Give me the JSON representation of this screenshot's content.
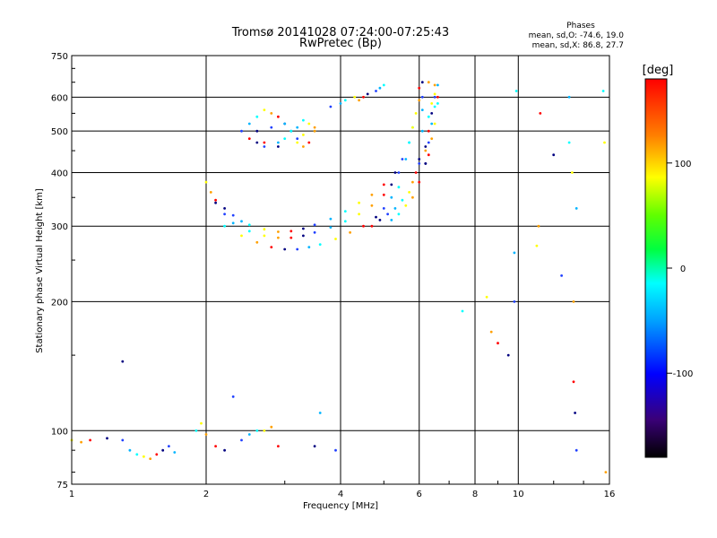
{
  "chart_data": {
    "type": "scatter",
    "title": "Tromsø 20141028 07:24:00-07:25:43",
    "subtitle": "RwPretec (Bp)",
    "stats": {
      "heading": "Phases",
      "line1": "mean, sd,O: -74.6, 19.0",
      "line2": "mean, sd,X:  86.8, 27.7"
    },
    "xlabel": "Frequency [MHz]",
    "ylabel": "Stationary phase Virtual Height [km]",
    "x_scale": "log",
    "y_scale": "log",
    "xlim": [
      1,
      16
    ],
    "ylim": [
      75,
      750
    ],
    "x_ticks": [
      {
        "value": 1,
        "label": "1"
      },
      {
        "value": 2,
        "label": "2"
      },
      {
        "value": 4,
        "label": "4"
      },
      {
        "value": 6,
        "label": "6"
      },
      {
        "value": 8,
        "label": "8"
      },
      {
        "value": 10,
        "label": "10"
      },
      {
        "value": 16,
        "label": "16"
      }
    ],
    "y_ticks": [
      {
        "value": 75,
        "label": "75"
      },
      {
        "value": 100,
        "label": "100"
      },
      {
        "value": 200,
        "label": "200"
      },
      {
        "value": 300,
        "label": "300"
      },
      {
        "value": 400,
        "label": "400"
      },
      {
        "value": 500,
        "label": "500"
      },
      {
        "value": 600,
        "label": "600"
      },
      {
        "value": 750,
        "label": "750"
      }
    ],
    "grid": true,
    "colorbar": {
      "label": "[deg]",
      "min": -180,
      "max": 180,
      "ticks": [
        {
          "value": 100,
          "label": "100"
        },
        {
          "value": 0,
          "label": "0"
        },
        {
          "value": -100,
          "label": "-100"
        }
      ]
    },
    "point_colors": [
      "#2040ff",
      "#00b4ff",
      "#00ffff",
      "#ffff00",
      "#ffa000",
      "#ff0000",
      "#000080"
    ],
    "series": [
      {
        "x": [
          2.4,
          2.5,
          2.6,
          2.7,
          2.8,
          2.9,
          3.0,
          3.1,
          3.2,
          3.3,
          3.4,
          3.5,
          2.5,
          2.6,
          2.7,
          2.9,
          3.0,
          3.2,
          3.3,
          3.4,
          2.6,
          2.8,
          3.0,
          3.1,
          3.3,
          3.5,
          2.7,
          2.9,
          3.2
        ],
        "y": [
          500,
          520,
          540,
          560,
          550,
          540,
          520,
          500,
          510,
          530,
          520,
          500,
          480,
          470,
          460,
          470,
          480,
          470,
          460,
          470,
          500,
          510,
          520,
          500,
          490,
          510,
          470,
          460,
          480
        ]
      },
      {
        "x": [
          2.0,
          2.05,
          2.1,
          2.2,
          2.3,
          2.4,
          2.5,
          2.7,
          2.9,
          3.1,
          3.3,
          3.5,
          3.8,
          4.1,
          4.4,
          4.7,
          5.0,
          5.3,
          5.5,
          5.7,
          5.8,
          5.9,
          6.0,
          6.0,
          6.1,
          6.1,
          6.1
        ],
        "y": [
          380,
          360,
          345,
          330,
          318,
          308,
          302,
          295,
          291,
          292,
          296,
          302,
          312,
          325,
          340,
          355,
          375,
          400,
          430,
          470,
          510,
          550,
          590,
          630,
          650,
          600,
          560
        ]
      },
      {
        "x": [
          2.1,
          2.2,
          2.3,
          2.5,
          2.7,
          2.9,
          3.1,
          3.3,
          3.5,
          3.8,
          4.1,
          4.4,
          4.7,
          5.0,
          5.2,
          5.4,
          5.6,
          5.7,
          5.8
        ],
        "y": [
          340,
          320,
          305,
          292,
          285,
          282,
          282,
          285,
          290,
          298,
          308,
          320,
          335,
          355,
          375,
          400,
          430,
          470,
          510
        ]
      },
      {
        "x": [
          2.2,
          2.4,
          2.6,
          2.8,
          3.0,
          3.2,
          3.4,
          3.6,
          3.9,
          4.2,
          4.5,
          4.8,
          5.0,
          5.2,
          5.4
        ],
        "y": [
          300,
          285,
          275,
          268,
          265,
          265,
          268,
          272,
          280,
          290,
          300,
          315,
          330,
          350,
          370
        ]
      },
      {
        "x": [
          4.7,
          4.9,
          5.1,
          5.3,
          5.5,
          5.7,
          5.8,
          5.9,
          6.0
        ],
        "y": [
          300,
          310,
          320,
          330,
          345,
          360,
          380,
          400,
          430
        ]
      },
      {
        "x": [
          5.2,
          5.4,
          5.6,
          5.8,
          6.0,
          6.2,
          6.3,
          6.4,
          6.5,
          6.5,
          6.5,
          6.6,
          6.2,
          6.0,
          6.1,
          6.3,
          6.4,
          6.3
        ],
        "y": [
          310,
          320,
          335,
          350,
          380,
          420,
          470,
          520,
          570,
          610,
          640,
          600,
          460,
          420,
          500,
          540,
          580,
          650
        ]
      },
      {
        "x": [
          6.2,
          6.3,
          6.4,
          6.5,
          6.6,
          6.6,
          6.5,
          6.4,
          6.3,
          6.2
        ],
        "y": [
          450,
          500,
          550,
          600,
          640,
          580,
          520,
          480,
          440,
          420
        ]
      },
      {
        "x": [
          3.8,
          4.0,
          4.1,
          4.3,
          4.4,
          4.5,
          4.6,
          4.8,
          4.9,
          5.0
        ],
        "y": [
          570,
          580,
          590,
          600,
          590,
          600,
          610,
          620,
          630,
          640
        ]
      },
      {
        "x": [
          1.0,
          1.05,
          1.1,
          1.2,
          1.3,
          1.35,
          1.4,
          1.45,
          1.5,
          1.55,
          1.6,
          1.65,
          1.7,
          1.9,
          1.95,
          2.0,
          2.1,
          2.2,
          2.4,
          2.5,
          2.6,
          2.7,
          2.8,
          2.9,
          3.5,
          3.9
        ],
        "y": [
          95,
          94,
          95,
          96,
          95,
          90,
          88,
          87,
          86,
          88,
          90,
          92,
          89,
          100,
          104,
          98,
          92,
          90,
          95,
          98,
          100,
          100,
          102,
          92,
          92,
          90
        ]
      },
      {
        "x": [
          1.3,
          2.3,
          3.6,
          7.5,
          8.5,
          8.7,
          9.0,
          9.5,
          9.8,
          9.8,
          9.9,
          11.0,
          11.1,
          11.2,
          12.0,
          12.5,
          13.0,
          13.0,
          13.2,
          13.3,
          13.3,
          13.4,
          13.5,
          13.5,
          15.5,
          15.6,
          15.7
        ],
        "y": [
          145,
          120,
          110,
          190,
          205,
          170,
          160,
          150,
          200,
          260,
          620,
          270,
          300,
          550,
          440,
          230,
          600,
          470,
          400,
          200,
          130,
          110,
          90,
          330,
          620,
          470,
          80
        ]
      }
    ]
  }
}
